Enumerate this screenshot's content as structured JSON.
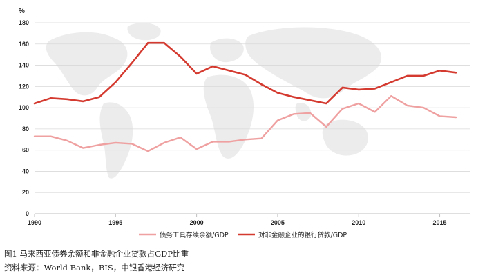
{
  "chart_data": {
    "type": "line",
    "ylabel": "%",
    "ylim": [
      0,
      180
    ],
    "yticks": [
      "0",
      "20",
      "40",
      "60",
      "80",
      "100",
      "120",
      "140",
      "160",
      "180"
    ],
    "xlim": [
      1990,
      2016
    ],
    "xticks": [
      "1990",
      "1995",
      "2000",
      "2005",
      "2010",
      "2015"
    ],
    "grid": "horizontal",
    "legend_position": "bottom",
    "series": [
      {
        "name": "债务工具存续余额/GDP",
        "color": "#EFA0A0",
        "x": [
          1990,
          1991,
          1992,
          1993,
          1994,
          1995,
          1996,
          1997,
          1998,
          1999,
          2000,
          2001,
          2002,
          2003,
          2004,
          2005,
          2006,
          2007,
          2008,
          2009,
          2010,
          2011,
          2012,
          2013,
          2014,
          2015,
          2016
        ],
        "values": [
          73,
          73,
          69,
          62,
          65,
          67,
          66,
          59,
          67,
          72,
          61,
          68,
          68,
          70,
          71,
          88,
          94,
          95,
          82,
          99,
          104,
          96,
          111,
          102,
          100,
          92,
          91
        ]
      },
      {
        "name": "对非金融企业的银行贷款/GDP",
        "color": "#D43A2F",
        "x": [
          1990,
          1991,
          1992,
          1993,
          1994,
          1995,
          1996,
          1997,
          1998,
          1999,
          2000,
          2001,
          2002,
          2003,
          2004,
          2005,
          2006,
          2007,
          2008,
          2009,
          2010,
          2011,
          2012,
          2013,
          2014,
          2015,
          2016
        ],
        "values": [
          104,
          109,
          108,
          106,
          110,
          124,
          142,
          161,
          161,
          148,
          132,
          139,
          135,
          131,
          122,
          114,
          110,
          107,
          104,
          119,
          117,
          118,
          124,
          130,
          130,
          135,
          133
        ]
      }
    ]
  },
  "caption": {
    "figure": "图1  马来西亚债券余额和非金融企业贷款占GDP比重",
    "source": "资料来源：World Bank，BIS，中银香港经济研究"
  }
}
